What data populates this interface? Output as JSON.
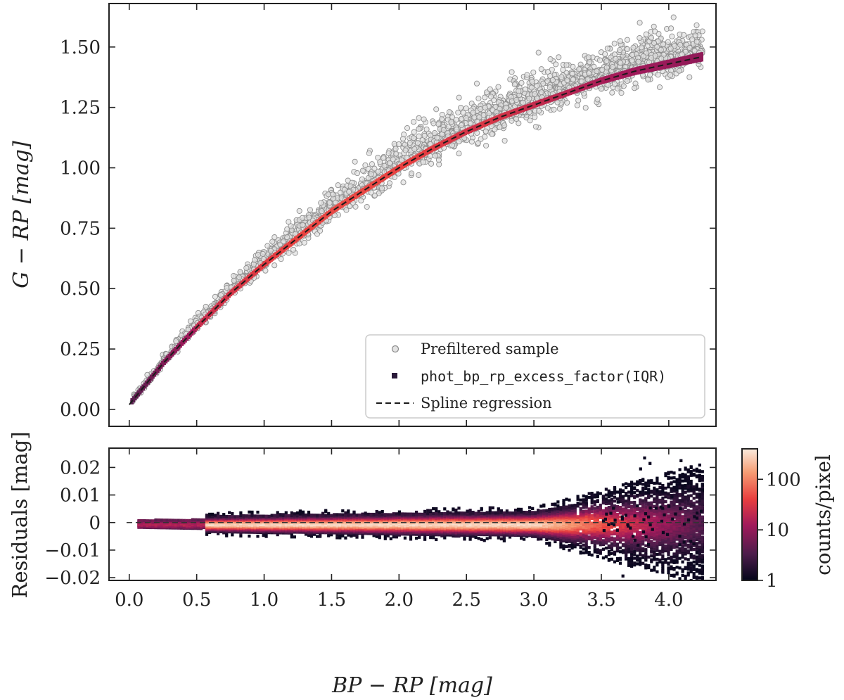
{
  "chart_data": [
    {
      "type": "scatter",
      "panel": "top",
      "ylabel": "G − RP [mag]",
      "xlim": [
        -0.15,
        4.35
      ],
      "ylim": [
        -0.07,
        1.68
      ],
      "yticks": [
        "0.00",
        "0.25",
        "0.50",
        "0.75",
        "1.00",
        "1.25",
        "1.50"
      ],
      "ytick_values": [
        0.0,
        0.25,
        0.5,
        0.75,
        1.0,
        1.25,
        1.5
      ],
      "xticks_shown": false,
      "grid": false,
      "legend": {
        "placement": "lower-right",
        "entries": [
          {
            "label": "Prefiltered sample",
            "marker": "open-circle-grey"
          },
          {
            "label": "phot_bp_rp_excess_factor(IQR)",
            "marker": "square-dark"
          },
          {
            "label": "Spline regression",
            "marker": "dashed-line"
          }
        ]
      },
      "series": [
        {
          "name": "Spline regression",
          "style": "dashed",
          "color": "#222222",
          "x": [
            0.0,
            0.25,
            0.5,
            0.75,
            1.0,
            1.25,
            1.5,
            1.75,
            2.0,
            2.25,
            2.5,
            2.75,
            3.0,
            3.25,
            3.5,
            3.75,
            4.0,
            4.25
          ],
          "y": [
            0.02,
            0.19,
            0.34,
            0.48,
            0.6,
            0.71,
            0.82,
            0.91,
            1.0,
            1.08,
            1.15,
            1.21,
            1.26,
            1.31,
            1.36,
            1.4,
            1.43,
            1.46
          ]
        },
        {
          "name": "Prefiltered sample",
          "style": "scatter-open-circles",
          "color": "#9a9a9a",
          "approx_points": 2200,
          "x_range": [
            0.02,
            4.25
          ],
          "note_offset_above_spline_max": 0.18
        },
        {
          "name": "phot_bp_rp_excess_factor(IQR)",
          "style": "dense-band",
          "colormap": "rocket",
          "x_range": [
            0.02,
            4.25
          ]
        }
      ]
    },
    {
      "type": "heatmap",
      "panel": "bottom",
      "xlabel": "BP − RP [mag]",
      "ylabel": "Residuals [mag]",
      "xlim": [
        -0.15,
        4.35
      ],
      "ylim": [
        -0.021,
        0.027
      ],
      "xticks": [
        "0.0",
        "0.5",
        "1.0",
        "1.5",
        "2.0",
        "2.5",
        "3.0",
        "3.5",
        "4.0"
      ],
      "xtick_values": [
        0.0,
        0.5,
        1.0,
        1.5,
        2.0,
        2.5,
        3.0,
        3.5,
        4.0
      ],
      "yticks": [
        "0.02",
        "0.01",
        "0",
        "−0.01",
        "−0.02"
      ],
      "ytick_values": [
        0.02,
        0.01,
        0.0,
        -0.01,
        -0.02
      ],
      "reference_line": {
        "y": 0,
        "style": "dashed"
      },
      "colorbar": {
        "label": "counts/pixel",
        "scale": "log",
        "range": [
          1,
          400
        ],
        "ticks": [
          "1",
          "10",
          "100"
        ],
        "tick_values": [
          1,
          10,
          100
        ],
        "colors": [
          "#03051a",
          "#4c1d4b",
          "#a11a5b",
          "#e83f3f",
          "#f69c73",
          "#faebdd"
        ]
      }
    }
  ]
}
